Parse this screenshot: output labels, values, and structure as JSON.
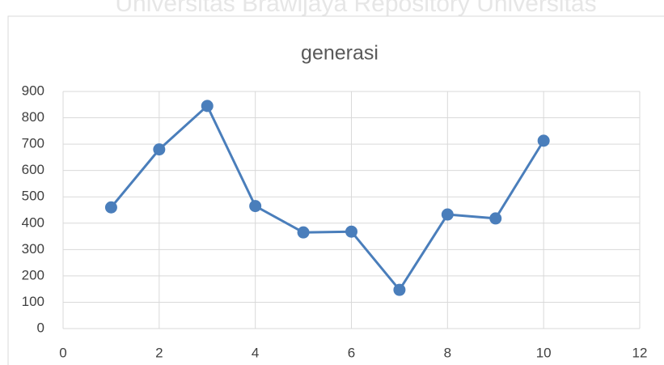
{
  "watermark": "Universitas Brawijaya Repository Universitas",
  "chart_data": {
    "type": "line",
    "title": "generasi",
    "x": [
      1,
      2,
      3,
      4,
      5,
      6,
      7,
      8,
      9,
      10
    ],
    "series": [
      {
        "name": "generasi",
        "color": "#4a7ebb",
        "values": [
          460,
          680,
          845,
          465,
          365,
          368,
          147,
          433,
          418,
          713
        ]
      }
    ],
    "xlim": [
      0,
      12
    ],
    "xticks": [
      0,
      2,
      4,
      6,
      8,
      10,
      12
    ],
    "ylim": [
      0,
      900
    ],
    "yticks": [
      0,
      100,
      200,
      300,
      400,
      500,
      600,
      700,
      800,
      900
    ],
    "grid": true,
    "markers": true
  }
}
